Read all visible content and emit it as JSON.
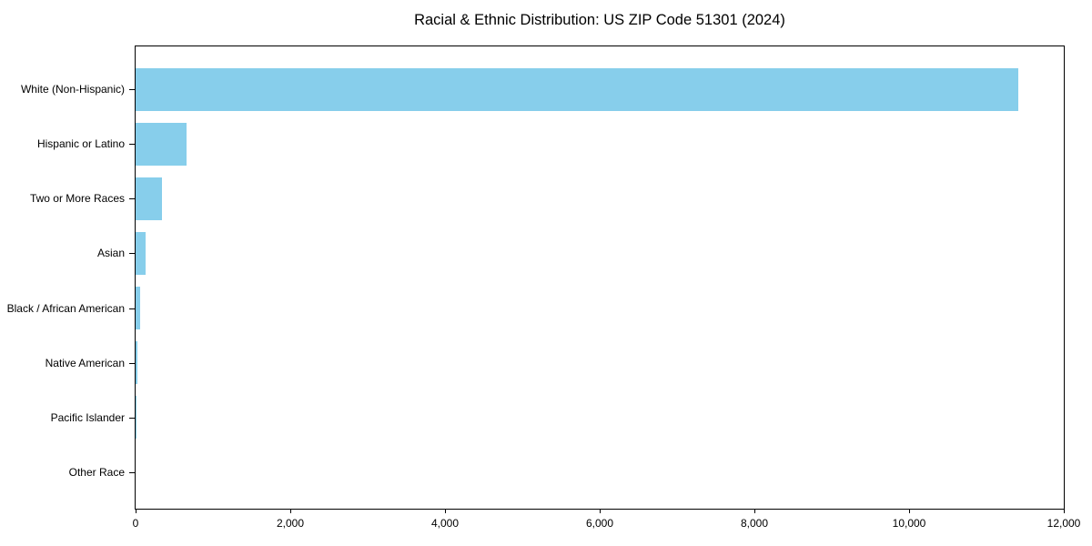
{
  "chart_data": {
    "type": "bar",
    "orientation": "horizontal",
    "title": "Racial & Ethnic Distribution: US ZIP Code 51301 (2024)",
    "categories": [
      "White (Non-Hispanic)",
      "Hispanic or Latino",
      "Two or More Races",
      "Asian",
      "Black / African American",
      "Native American",
      "Pacific Islander",
      "Other Race"
    ],
    "values": [
      11410,
      655,
      340,
      125,
      55,
      20,
      5,
      0
    ],
    "xlabel": "",
    "ylabel": "",
    "xlim": [
      0,
      12000
    ],
    "x_ticks": [
      0,
      2000,
      4000,
      6000,
      8000,
      10000,
      12000
    ],
    "x_tick_labels": [
      "0",
      "2,000",
      "4,000",
      "6,000",
      "8,000",
      "10,000",
      "12,000"
    ],
    "bar_color": "#87CEEB",
    "axis_color": "#000000",
    "background_color": "#FFFFFF",
    "grid": false,
    "legend": null
  }
}
